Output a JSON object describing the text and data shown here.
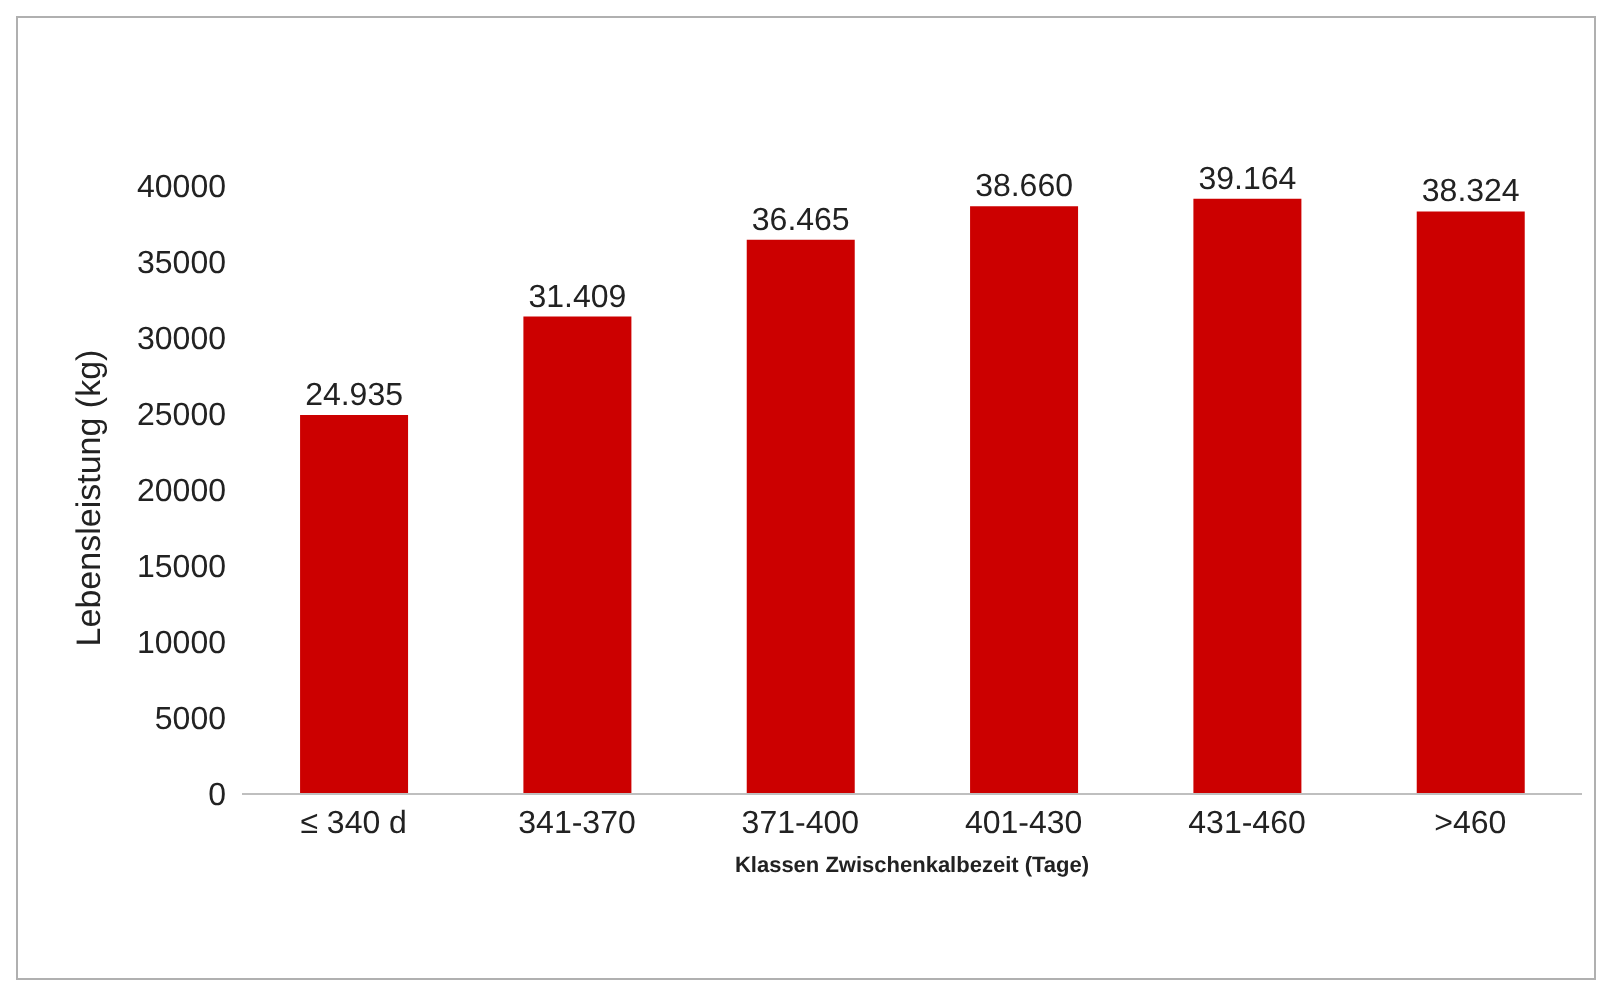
{
  "chart_data": {
    "type": "bar",
    "xlabel": "Klassen Zwischenkalbezeit (Tage)",
    "ylabel": "Lebensleistung (kg)",
    "categories": [
      "≤ 340 d",
      "341-370",
      "371-400",
      "401-430",
      "431-460",
      ">460"
    ],
    "values": [
      24935,
      31409,
      36465,
      38660,
      39164,
      38324
    ],
    "value_labels": [
      "24.935",
      "31.409",
      "36.465",
      "38.660",
      "39.164",
      "38.324"
    ],
    "color": "#cc0000",
    "ylim": [
      0,
      40000
    ],
    "yticks": [
      0,
      5000,
      10000,
      15000,
      20000,
      25000,
      30000,
      35000,
      40000
    ],
    "grid": false,
    "legend": false
  }
}
